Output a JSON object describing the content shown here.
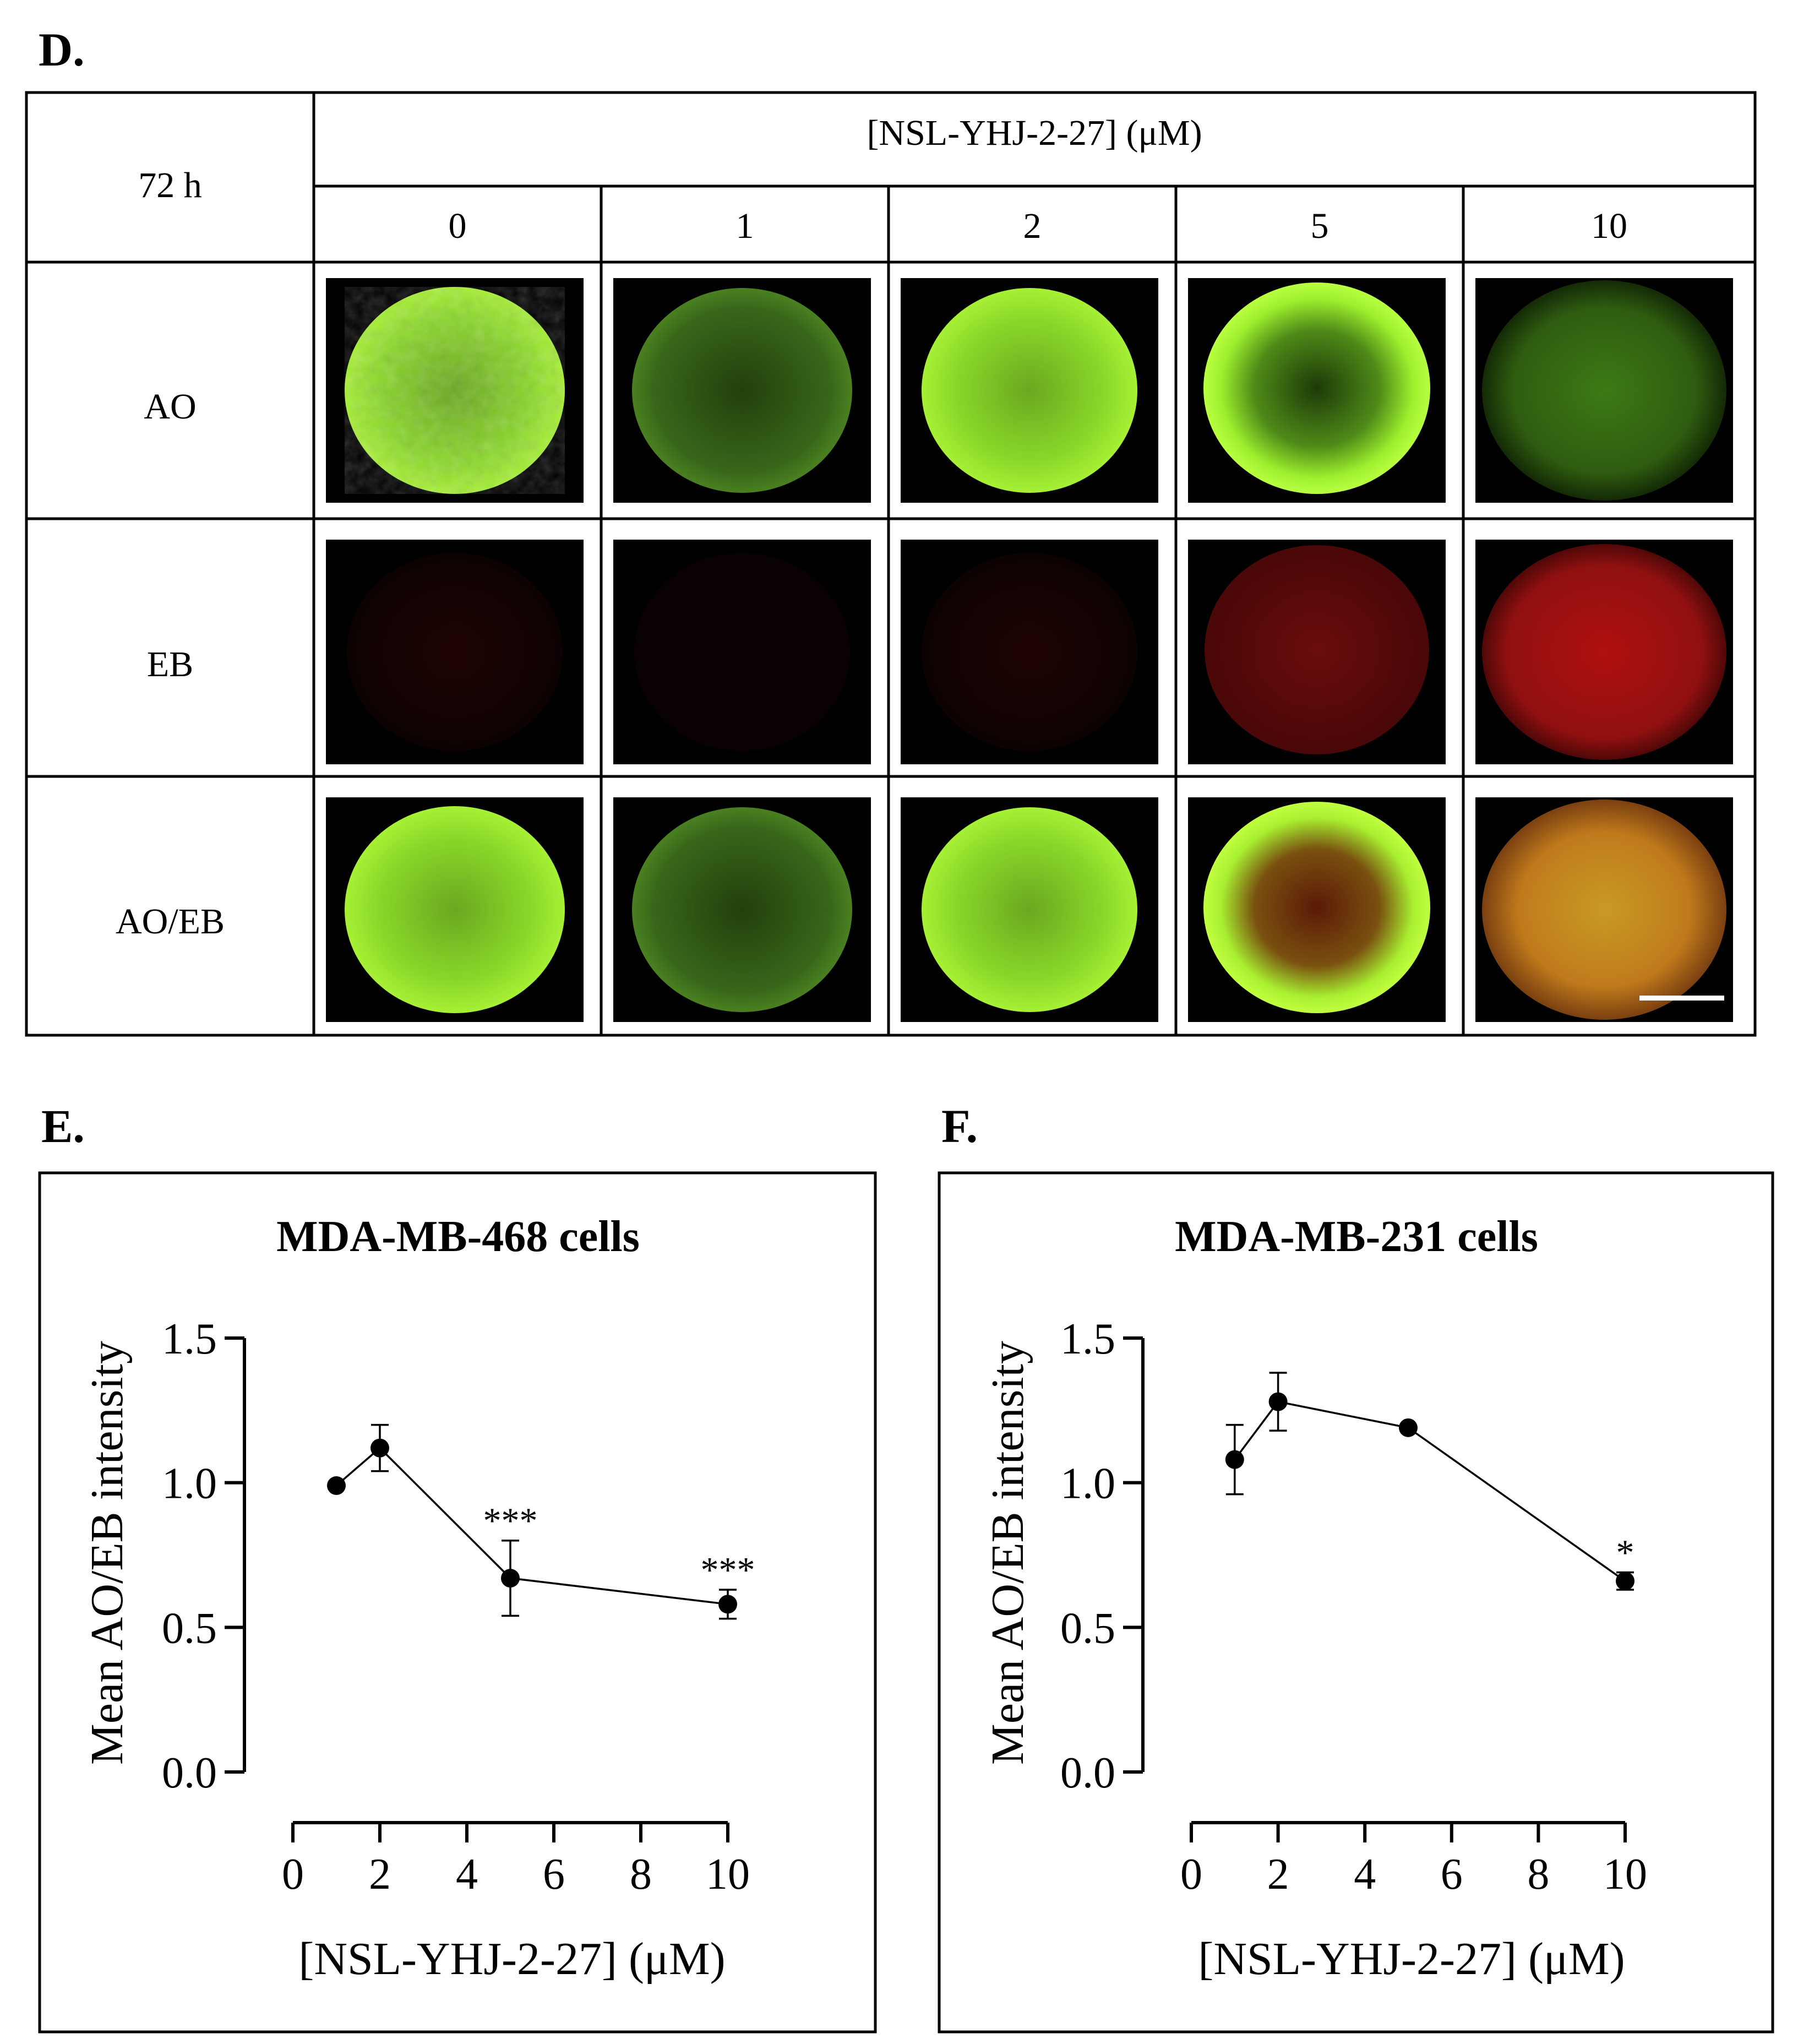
{
  "panel_labels": {
    "d": "D.",
    "e": "E.",
    "f": "F."
  },
  "table": {
    "time_label": "72 h",
    "header": "[NSL-YHJ-2-27]  (μM)",
    "concentrations": [
      "0",
      "1",
      "2",
      "5",
      "10"
    ],
    "rows": [
      {
        "label": "AO",
        "stain": "ao"
      },
      {
        "label": "EB",
        "stain": "eb"
      },
      {
        "label": "AO/EB",
        "stain": "merge"
      }
    ],
    "colors": {
      "ao": "#8ee12a",
      "eb": "#c81414",
      "merge_orange": "#d08a20",
      "background": "#000000",
      "scale_bar": "#ffffff"
    }
  },
  "chart_data": [
    {
      "type": "scatter",
      "title": "MDA-MB-468 cells",
      "xlabel": "[NSL-YHJ-2-27] (μM)",
      "ylabel": "Mean AO/EB intensity",
      "xlim": [
        0,
        10
      ],
      "ylim": [
        0,
        1.5
      ],
      "xticks": [
        "0",
        "2",
        "4",
        "6",
        "8",
        "10"
      ],
      "yticks": [
        "0.0",
        "0.5",
        "1.0",
        "1.5"
      ],
      "points": [
        {
          "x": 1,
          "y": 0.99,
          "err": 0,
          "sig": ""
        },
        {
          "x": 2,
          "y": 1.12,
          "err": 0.08,
          "sig": ""
        },
        {
          "x": 5,
          "y": 0.67,
          "err": 0.13,
          "sig": "***"
        },
        {
          "x": 10,
          "y": 0.58,
          "err": 0.05,
          "sig": "***"
        }
      ],
      "connected": true,
      "grid": false
    },
    {
      "type": "scatter",
      "title": "MDA-MB-231 cells",
      "xlabel": "[NSL-YHJ-2-27] (μM)",
      "ylabel": "Mean AO/EB intensity",
      "xlim": [
        0,
        10
      ],
      "ylim": [
        0,
        1.5
      ],
      "xticks": [
        "0",
        "2",
        "4",
        "6",
        "8",
        "10"
      ],
      "yticks": [
        "0.0",
        "0.5",
        "1.0",
        "1.5"
      ],
      "points": [
        {
          "x": 1,
          "y": 1.08,
          "err": 0.12,
          "sig": ""
        },
        {
          "x": 2,
          "y": 1.28,
          "err": 0.1,
          "sig": ""
        },
        {
          "x": 5,
          "y": 1.19,
          "err": 0,
          "sig": ""
        },
        {
          "x": 10,
          "y": 0.66,
          "err": 0.03,
          "sig": "*"
        }
      ],
      "connected": true,
      "grid": false
    }
  ]
}
